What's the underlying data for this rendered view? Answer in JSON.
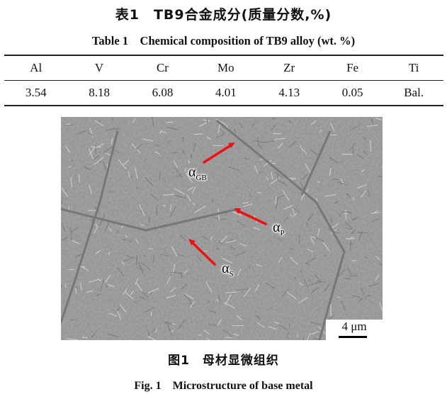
{
  "table": {
    "title_cn": "表1　TB9合金成分(质量分数,%)",
    "title_en": "Table 1　Chemical composition of TB9 alloy (wt. %)",
    "headers": [
      "Al",
      "V",
      "Cr",
      "Mo",
      "Zr",
      "Fe",
      "Ti"
    ],
    "values": [
      "3.54",
      "8.18",
      "6.08",
      "4.01",
      "4.13",
      "0.05",
      "Bal."
    ]
  },
  "figure": {
    "labels": [
      {
        "symbol": "α",
        "sub": "GB"
      },
      {
        "symbol": "α",
        "sub": "P"
      },
      {
        "symbol": "α",
        "sub": "S"
      }
    ],
    "scale_bar": "4 μm",
    "arrow_color": "#ee1111",
    "caption_cn": "图1　母材显微组织",
    "caption_en": "Fig. 1　Microstructure of base metal"
  }
}
